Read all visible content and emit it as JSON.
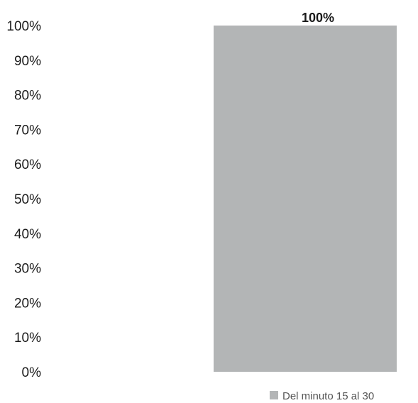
{
  "chart_data": {
    "type": "bar",
    "categories": [
      ""
    ],
    "series": [
      {
        "name": "Del minuto 15 al 30",
        "values": [
          100
        ],
        "color": "#b3b5b6"
      }
    ],
    "data_labels": [
      "100%"
    ],
    "ylim": [
      0,
      100
    ],
    "yticks": [
      0,
      10,
      20,
      30,
      40,
      50,
      60,
      70,
      80,
      90,
      100
    ],
    "ytick_labels": [
      "0%",
      "10%",
      "20%",
      "30%",
      "40%",
      "50%",
      "60%",
      "70%",
      "80%",
      "90%",
      "100%"
    ],
    "grid": false,
    "legend_position": "bottom-right"
  }
}
